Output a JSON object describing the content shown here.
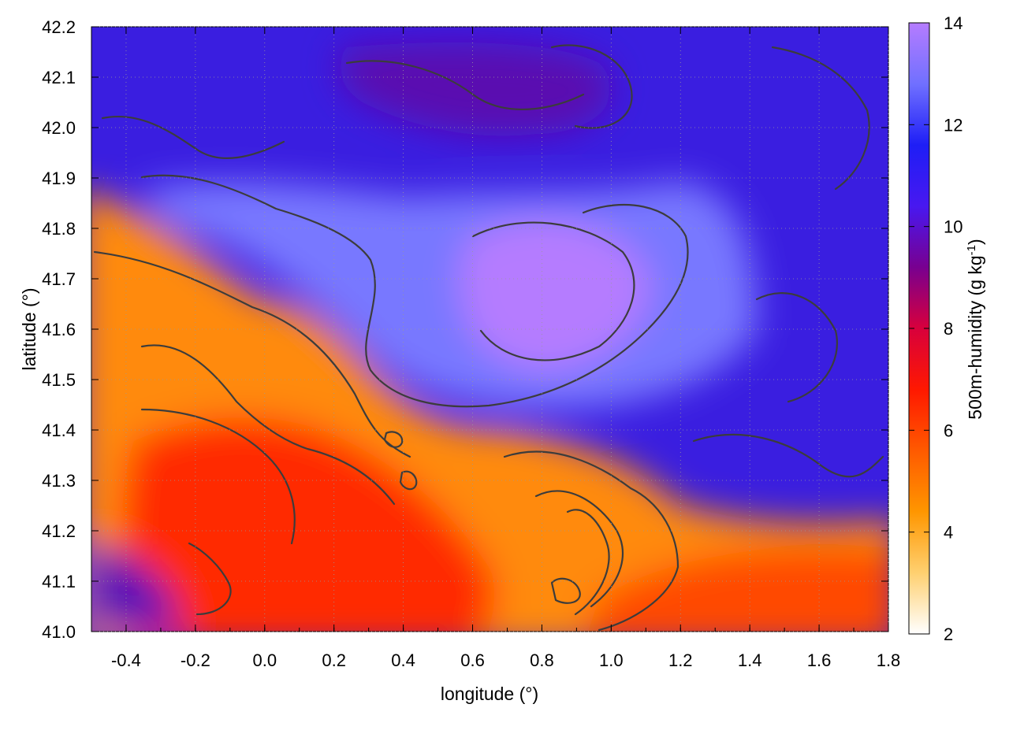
{
  "chart_data": {
    "type": "heatmap",
    "title": "",
    "xlabel": "longitude (°)",
    "ylabel": "latitude (°)",
    "xlim": [
      -0.5,
      1.8
    ],
    "ylim": [
      41.0,
      42.2
    ],
    "x_ticks": [
      "-0.4",
      "-0.2",
      "0.0",
      "0.2",
      "0.4",
      "0.6",
      "0.8",
      "1.0",
      "1.2",
      "1.4",
      "1.6",
      "1.8"
    ],
    "y_ticks": [
      "41.0",
      "41.1",
      "41.2",
      "41.3",
      "41.4",
      "41.5",
      "41.6",
      "41.7",
      "41.8",
      "41.9",
      "42.0",
      "42.1",
      "42.2"
    ],
    "grid": true,
    "colorbar": {
      "label": "500m-humidity (g kg-1)",
      "label_main": "500m-humidity (g kg",
      "label_sup": "-1",
      "label_close": ")",
      "range": [
        2,
        14
      ],
      "ticks": [
        "2",
        "4",
        "6",
        "8",
        "10",
        "12",
        "14"
      ],
      "palette": [
        "#ffffff",
        "#ffd070",
        "#ff9600",
        "#ff5a00",
        "#ff1800",
        "#d8003c",
        "#780090",
        "#4818f0",
        "#1e1ef6",
        "#7070ff",
        "#b57cff"
      ]
    },
    "overlay": "contour lines",
    "field_regions": [
      {
        "region": "north (lat 41.85-42.2)",
        "humidity": 10.5
      },
      {
        "region": "central (lon 0.3-1.4, lat 41.45-41.85)",
        "humidity": 12.8
      },
      {
        "region": "central core (lon 0.6-1.0, lat 41.55-41.8)",
        "humidity": 14
      },
      {
        "region": "east (lon 1.3-1.8, lat 41.2-41.9)",
        "humidity": 11
      },
      {
        "region": "southwest (lon -0.5-0.3, lat 41.3-41.65)",
        "humidity": 5.5
      },
      {
        "region": "south (lon -0.3-0.5, lat 41.0-41.35)",
        "humidity": 7.5
      },
      {
        "region": "southeast (lon 0.6-1.8, lat 41.0-41.2)",
        "humidity": 6.3
      },
      {
        "region": "far west strip (lon -0.45, lat 41.05-41.2)",
        "humidity": 10.5
      }
    ]
  }
}
